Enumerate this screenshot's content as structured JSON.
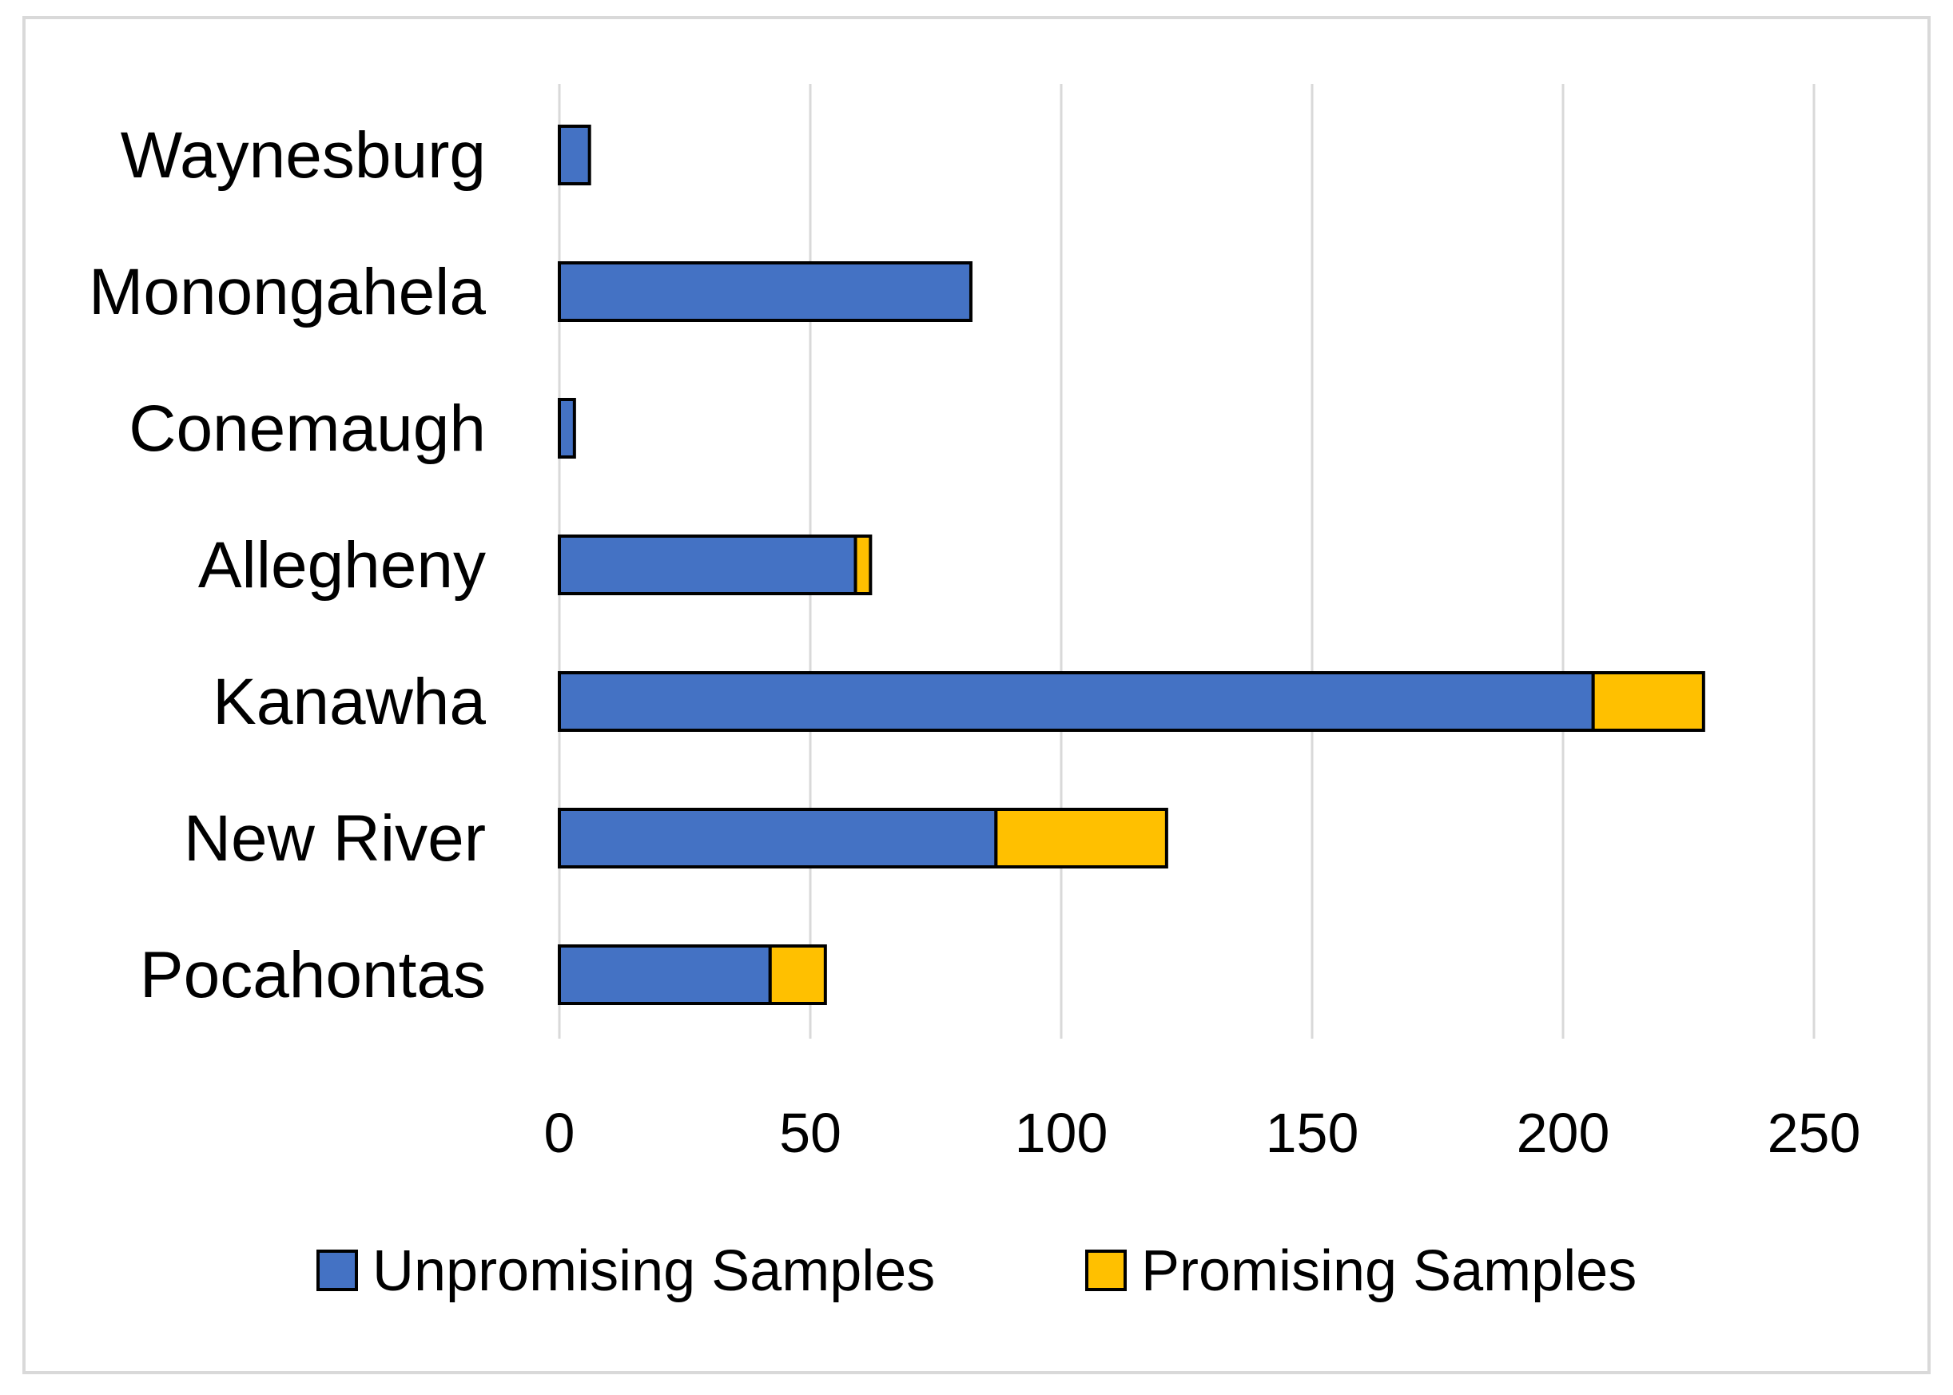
{
  "chart_data": {
    "type": "bar",
    "orientation": "horizontal",
    "stacked": true,
    "title": "",
    "xlabel": "",
    "ylabel": "",
    "categories": [
      "Waynesburg",
      "Monongahela",
      "Conemaugh",
      "Allegheny",
      "Kanawha",
      "New River",
      "Pocahontas"
    ],
    "series": [
      {
        "name": "Unpromising Samples",
        "color": "#4472c4",
        "values": [
          6,
          82,
          3,
          59,
          206,
          87,
          42
        ]
      },
      {
        "name": "Promising Samples",
        "color": "#ffc000",
        "values": [
          0,
          0,
          0,
          3,
          22,
          34,
          11
        ]
      }
    ],
    "xlim": [
      0,
      250
    ],
    "xticks": [
      0,
      50,
      100,
      150,
      200,
      250
    ],
    "grid": true,
    "legend_position": "bottom"
  }
}
